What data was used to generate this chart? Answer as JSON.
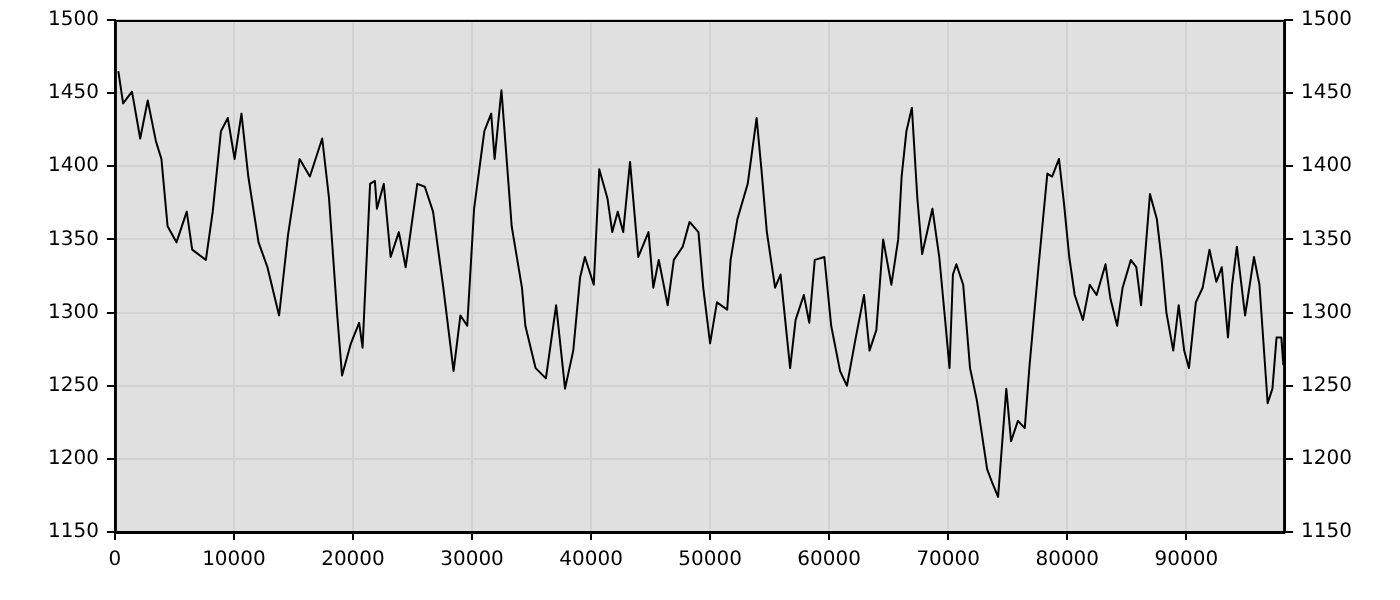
{
  "chart_data": {
    "type": "line",
    "x": [
      287,
      690,
      1436,
      2126,
      2758,
      3448,
      3908,
      4425,
      5172,
      6034,
      6494,
      7643,
      8218,
      8908,
      9482,
      10057,
      10632,
      11206,
      12068,
      12815,
      13792,
      14540,
      15517,
      16379,
      17414,
      17988,
      18678,
      19080,
      19827,
      20517,
      20805,
      21437,
      21839,
      22012,
      22587,
      23162,
      23851,
      24426,
      25403,
      26035,
      26725,
      27587,
      28449,
      29024,
      29598,
      30173,
      31035,
      31610,
      31897,
      32472,
      33331,
      34193,
      34480,
      35342,
      36204,
      37066,
      37813,
      38503,
      39078,
      39480,
      40227,
      40687,
      41377,
      41779,
      42239,
      42698,
      43273,
      43963,
      44825,
      45227,
      45687,
      46434,
      46951,
      47698,
      48273,
      49020,
      49422,
      49997,
      50572,
      51434,
      51721,
      52296,
      53158,
      53905,
      54308,
      54767,
      55457,
      55917,
      56721,
      57181,
      57871,
      58330,
      58790,
      59595,
      60170,
      60917,
      61492,
      62239,
      62928,
      63388,
      63963,
      64537,
      65225,
      65799,
      66087,
      66489,
      66949,
      67409,
      67811,
      68673,
      69248,
      69707,
      70109,
      70397,
      70684,
      71259,
      71834,
      72408,
      73270,
      73730,
      74190,
      74880,
      75282,
      75857,
      76432,
      76834,
      77581,
      78328,
      78731,
      79305,
      79708,
      80168,
      80627,
      81317,
      81892,
      82467,
      83214,
      83616,
      84191,
      84651,
      85340,
      85800,
      86202,
      86949,
      87524,
      87927,
      88329,
      88903,
      89363,
      89823,
      90225,
      90800,
      91375,
      91949,
      92524,
      92984,
      93501,
      93846,
      94248,
      94938,
      95685,
      96145,
      96834,
      97237,
      97582,
      97984,
      98157
    ],
    "series": [
      {
        "color": "#000000",
        "values": [
          1465,
          1443,
          1451,
          1419,
          1445,
          1417,
          1405,
          1359,
          1348,
          1369,
          1343,
          1336,
          1369,
          1424,
          1433,
          1405,
          1436,
          1393,
          1348,
          1331,
          1298,
          1353,
          1405,
          1393,
          1419,
          1378,
          1298,
          1257,
          1279,
          1293,
          1276,
          1388,
          1390,
          1371,
          1388,
          1338,
          1355,
          1331,
          1388,
          1386,
          1369,
          1317,
          1260,
          1298,
          1291,
          1371,
          1424,
          1436,
          1405,
          1452,
          1359,
          1317,
          1291,
          1262,
          1255,
          1305,
          1248,
          1274,
          1324,
          1338,
          1319,
          1398,
          1378,
          1355,
          1369,
          1355,
          1403,
          1338,
          1355,
          1317,
          1336,
          1305,
          1336,
          1345,
          1362,
          1355,
          1317,
          1279,
          1307,
          1302,
          1336,
          1364,
          1388,
          1433,
          1398,
          1355,
          1317,
          1326,
          1262,
          1295,
          1312,
          1293,
          1336,
          1338,
          1291,
          1260,
          1250,
          1283,
          1312,
          1274,
          1288,
          1350,
          1319,
          1350,
          1393,
          1424,
          1440,
          1378,
          1340,
          1371,
          1338,
          1298,
          1262,
          1326,
          1333,
          1319,
          1262,
          1240,
          1193,
          1183,
          1174,
          1248,
          1212,
          1226,
          1221,
          1264,
          1331,
          1395,
          1393,
          1405,
          1376,
          1338,
          1312,
          1295,
          1319,
          1312,
          1333,
          1310,
          1291,
          1317,
          1336,
          1331,
          1305,
          1381,
          1364,
          1336,
          1300,
          1274,
          1305,
          1274,
          1262,
          1307,
          1317,
          1343,
          1321,
          1331,
          1283,
          1319,
          1345,
          1298,
          1338,
          1319,
          1238,
          1248,
          1283,
          1283,
          1264
        ]
      }
    ],
    "xlim": [
      0,
      98300
    ],
    "xticks": [
      0,
      10000,
      20000,
      30000,
      40000,
      50000,
      60000,
      70000,
      80000,
      90000
    ],
    "ylim": [
      1150,
      1500
    ],
    "yticks": [
      1150,
      1200,
      1250,
      1300,
      1350,
      1400,
      1450,
      1500
    ],
    "y2lim": [
      1150,
      1500
    ],
    "y2ticks": [
      1150,
      1200,
      1250,
      1300,
      1350,
      1400,
      1450,
      1500
    ],
    "grid": true,
    "legend": false,
    "marker": "none",
    "line_style": "solid"
  }
}
